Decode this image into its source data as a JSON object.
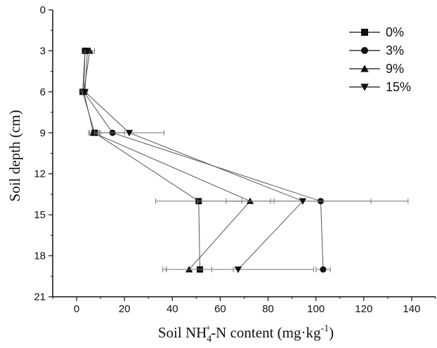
{
  "chart_data": {
    "type": "line",
    "orientation": "depth-profile",
    "xlabel": "Soil NH",
    "xlabel_sub": "4",
    "xlabel_sup": "+",
    "xlabel_rest": "-N content (mg·kg",
    "xlabel_unit_sup": "-1",
    "xlabel_close": ")",
    "ylabel": "Soil depth (cm)",
    "xlim": [
      -10,
      150
    ],
    "ylim": [
      21,
      0
    ],
    "y_inverted": true,
    "xticks": [
      "0",
      "20",
      "40",
      "60",
      "80",
      "100",
      "120",
      "140"
    ],
    "xtick_values": [
      0,
      20,
      40,
      60,
      80,
      100,
      120,
      140
    ],
    "yticks": [
      "0",
      "3",
      "6",
      "9",
      "12",
      "15",
      "18",
      "21"
    ],
    "ytick_values": [
      0,
      3,
      6,
      9,
      12,
      15,
      18,
      21
    ],
    "grid": false,
    "legend_position": "top-right",
    "series": [
      {
        "name": "0%",
        "marker": "square",
        "points": [
          {
            "x": 3.5,
            "y": 3,
            "err": 1.0
          },
          {
            "x": 2.5,
            "y": 6,
            "err": 1.0
          },
          {
            "x": 7.5,
            "y": 9,
            "err": 2.0
          },
          {
            "x": 51,
            "y": 14,
            "err": 18.0
          },
          {
            "x": 51.5,
            "y": 19,
            "err": 14.0
          }
        ]
      },
      {
        "name": "3%",
        "marker": "circle",
        "points": [
          {
            "x": 3.5,
            "y": 3,
            "err": 1.0
          },
          {
            "x": 3,
            "y": 6,
            "err": 1.0
          },
          {
            "x": 15,
            "y": 9,
            "err": 5.0
          },
          {
            "x": 102,
            "y": 14,
            "err": 21.0
          },
          {
            "x": 103,
            "y": 19,
            "err": 3.0
          }
        ]
      },
      {
        "name": "9%",
        "marker": "triangle-up",
        "points": [
          {
            "x": 5.5,
            "y": 3,
            "err": 2.0
          },
          {
            "x": 3,
            "y": 6,
            "err": 1.0
          },
          {
            "x": 7,
            "y": 9,
            "err": 2.0
          },
          {
            "x": 72.5,
            "y": 14,
            "err": 10.0
          },
          {
            "x": 47,
            "y": 19,
            "err": 9.5
          }
        ]
      },
      {
        "name": "15%",
        "marker": "triangle-down",
        "points": [
          {
            "x": 4.5,
            "y": 3,
            "err": 1.0
          },
          {
            "x": 3.5,
            "y": 6,
            "err": 1.0
          },
          {
            "x": 22,
            "y": 9,
            "err": 14.5
          },
          {
            "x": 94.5,
            "y": 14,
            "err": 44.0
          },
          {
            "x": 67.5,
            "y": 19,
            "err": 31.5
          }
        ]
      }
    ]
  }
}
